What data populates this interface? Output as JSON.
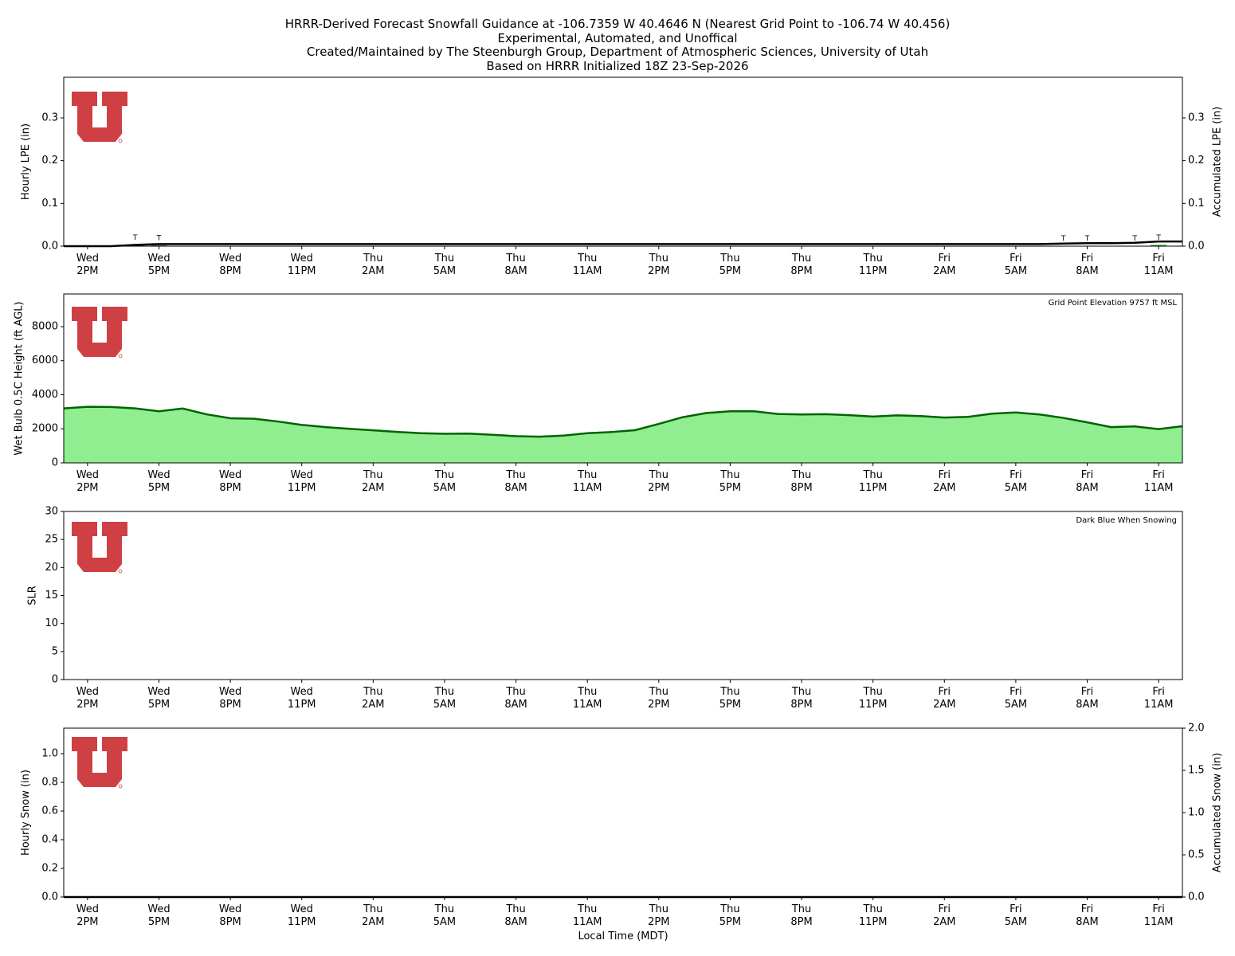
{
  "chart_data": [
    {
      "type": "bar",
      "title": "HRRR-Derived Forecast Snowfall Guidance at -106.7359 W 40.4646 N (Nearest Grid Point to -106.74 W 40.456)\nExperimental, Automated, and Unoffical\nCreated/Maintained by The Steenburgh Group, Department of Atmospheric Sciences, University of Utah\nBased on HRRR Initialized 18Z 23-Sep-2026",
      "categories": [
        null,
        "Wed\n2PM",
        null,
        null,
        "Wed\n5PM",
        null,
        null,
        "Wed\n8PM",
        null,
        null,
        "Wed\n11PM",
        null,
        null,
        "Thu\n2AM",
        null,
        null,
        "Thu\n5AM",
        null,
        null,
        "Thu\n8AM",
        null,
        null,
        "Thu\n11AM",
        null,
        null,
        "Thu\n2PM",
        null,
        null,
        "Thu\n5PM",
        null,
        null,
        "Thu\n8PM",
        null,
        null,
        "Thu\n11PM",
        null,
        null,
        "Fri\n2AM",
        null,
        null,
        "Fri\n5AM",
        null,
        null,
        "Fri\n8AM",
        null,
        null,
        "Fri\n11AM",
        null
      ],
      "ylabel": "Hourly LPE (in)",
      "y2label": "Accumulated LPE (in)",
      "ylim": [
        0,
        0.395
      ],
      "yticks": [
        {
          "value": 0,
          "label": "0.0"
        },
        0.1,
        0.2,
        0.3
      ],
      "y2lim": [
        0,
        0.395
      ],
      "y2ticks": [
        {
          "value": 0,
          "label": "0.0"
        },
        0.1,
        0.2,
        0.3
      ],
      "series": [
        {
          "type": "bar",
          "color": "#2ca02c",
          "values": [
            0,
            0,
            0,
            0.003,
            0.002,
            0,
            0,
            0,
            0,
            0,
            0,
            0,
            0,
            0,
            0,
            0,
            0,
            0,
            0,
            0,
            0,
            0,
            0,
            0,
            0,
            0,
            0,
            0,
            0,
            0,
            0,
            0,
            0,
            0,
            0,
            0,
            0,
            0,
            0,
            0,
            0,
            0,
            0.001,
            0.001,
            0,
            0.001,
            0.003,
            0
          ],
          "value_labels": [
            null,
            null,
            null,
            "T",
            "T",
            null,
            null,
            null,
            null,
            null,
            null,
            null,
            null,
            null,
            null,
            null,
            null,
            null,
            null,
            null,
            null,
            null,
            null,
            null,
            null,
            null,
            null,
            null,
            null,
            null,
            null,
            null,
            null,
            null,
            null,
            null,
            null,
            null,
            null,
            null,
            null,
            null,
            "T",
            "T",
            null,
            "T",
            "T",
            null
          ]
        },
        {
          "type": "line",
          "axis": "y2",
          "color": "#000000",
          "values": [
            0,
            0,
            0,
            0.003,
            0.005,
            0.005,
            0.005,
            0.005,
            0.005,
            0.005,
            0.005,
            0.005,
            0.005,
            0.005,
            0.005,
            0.005,
            0.005,
            0.005,
            0.005,
            0.005,
            0.005,
            0.005,
            0.005,
            0.005,
            0.005,
            0.005,
            0.005,
            0.005,
            0.005,
            0.005,
            0.005,
            0.005,
            0.005,
            0.005,
            0.005,
            0.005,
            0.005,
            0.005,
            0.005,
            0.005,
            0.005,
            0.005,
            0.006,
            0.007,
            0.007,
            0.008,
            0.011,
            0.011
          ]
        }
      ]
    },
    {
      "type": "area",
      "categories": [
        null,
        "Wed\n2PM",
        null,
        null,
        "Wed\n5PM",
        null,
        null,
        "Wed\n8PM",
        null,
        null,
        "Wed\n11PM",
        null,
        null,
        "Thu\n2AM",
        null,
        null,
        "Thu\n5AM",
        null,
        null,
        "Thu\n8AM",
        null,
        null,
        "Thu\n11AM",
        null,
        null,
        "Thu\n2PM",
        null,
        null,
        "Thu\n5PM",
        null,
        null,
        "Thu\n8PM",
        null,
        null,
        "Thu\n11PM",
        null,
        null,
        "Fri\n2AM",
        null,
        null,
        "Fri\n5AM",
        null,
        null,
        "Fri\n8AM",
        null,
        null,
        "Fri\n11AM",
        null
      ],
      "ylabel": "Wet Bulb 0.5C Height (ft AGL)",
      "annotation": "Grid Point Elevation 9757 ft MSL",
      "ylim": [
        0,
        9918
      ],
      "yticks": [
        0,
        2000,
        4000,
        6000,
        8000
      ],
      "series": [
        {
          "type": "area",
          "color": "#90ee90",
          "line_color": "#006400",
          "values": [
            3200,
            3290,
            3280,
            3200,
            3030,
            3190,
            2850,
            2620,
            2590,
            2430,
            2230,
            2100,
            2000,
            1910,
            1820,
            1740,
            1710,
            1720,
            1650,
            1570,
            1540,
            1600,
            1740,
            1810,
            1920,
            2290,
            2680,
            2930,
            3030,
            3030,
            2870,
            2840,
            2860,
            2800,
            2720,
            2790,
            2750,
            2660,
            2700,
            2890,
            2960,
            2840,
            2640,
            2380,
            2100,
            2140,
            1980,
            2150
          ]
        }
      ]
    },
    {
      "type": "line",
      "categories": [
        null,
        "Wed\n2PM",
        null,
        null,
        "Wed\n5PM",
        null,
        null,
        "Wed\n8PM",
        null,
        null,
        "Wed\n11PM",
        null,
        null,
        "Thu\n2AM",
        null,
        null,
        "Thu\n5AM",
        null,
        null,
        "Thu\n8AM",
        null,
        null,
        "Thu\n11AM",
        null,
        null,
        "Thu\n2PM",
        null,
        null,
        "Thu\n5PM",
        null,
        null,
        "Thu\n8PM",
        null,
        null,
        "Thu\n11PM",
        null,
        null,
        "Fri\n2AM",
        null,
        null,
        "Fri\n5AM",
        null,
        null,
        "Fri\n8AM",
        null,
        null,
        "Fri\n11AM",
        null
      ],
      "ylabel": "SLR",
      "annotation": "Dark Blue When Snowing",
      "ylim": [
        0,
        30
      ],
      "yticks": [
        0,
        5,
        10,
        15,
        20,
        25,
        30
      ]
    },
    {
      "type": "bar",
      "categories": [
        null,
        "Wed\n2PM",
        null,
        null,
        "Wed\n5PM",
        null,
        null,
        "Wed\n8PM",
        null,
        null,
        "Wed\n11PM",
        null,
        null,
        "Thu\n2AM",
        null,
        null,
        "Thu\n5AM",
        null,
        null,
        "Thu\n8AM",
        null,
        null,
        "Thu\n11AM",
        null,
        null,
        "Thu\n2PM",
        null,
        null,
        "Thu\n5PM",
        null,
        null,
        "Thu\n8PM",
        null,
        null,
        "Thu\n11PM",
        null,
        null,
        "Fri\n2AM",
        null,
        null,
        "Fri\n5AM",
        null,
        null,
        "Fri\n8AM",
        null,
        null,
        "Fri\n11AM",
        null
      ],
      "ylabel": "Hourly Snow (in)",
      "y2label": "Accumulated Snow (in)",
      "xlabel": "Local Time (MDT)",
      "ylim": [
        0,
        1.178
      ],
      "yticks": [
        {
          "value": 0,
          "label": "0.0"
        },
        0.2,
        0.4,
        0.6,
        0.8,
        {
          "value": 1,
          "label": "1.0"
        }
      ],
      "y2lim": [
        0,
        2
      ],
      "y2ticks": [
        {
          "value": 0,
          "label": "0.0"
        },
        0.5,
        {
          "value": 1,
          "label": "1.0"
        },
        1.5,
        {
          "value": 2,
          "label": "2.0"
        }
      ],
      "series": [
        {
          "type": "line",
          "axis": "y2",
          "color": "#000000",
          "values": [
            0,
            0,
            0,
            0,
            0,
            0,
            0,
            0,
            0,
            0,
            0,
            0,
            0,
            0,
            0,
            0,
            0,
            0,
            0,
            0,
            0,
            0,
            0,
            0,
            0,
            0,
            0,
            0,
            0,
            0,
            0,
            0,
            0,
            0,
            0,
            0,
            0,
            0,
            0,
            0,
            0,
            0,
            0,
            0,
            0,
            0,
            0,
            0
          ]
        }
      ]
    }
  ]
}
